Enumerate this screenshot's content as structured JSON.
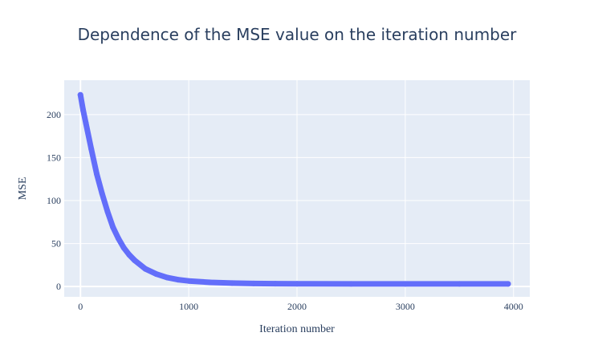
{
  "chart_data": {
    "type": "scatter",
    "title": "Dependence of the MSE value on the iteration number",
    "xlabel": "Iteration number",
    "ylabel": "MSE",
    "xlim": [
      -150,
      4150
    ],
    "ylim": [
      -12,
      240
    ],
    "x_ticks": [
      0,
      1000,
      2000,
      3000,
      4000
    ],
    "x_tick_labels": [
      "0",
      "1000",
      "2000",
      "3000",
      "4000"
    ],
    "y_ticks": [
      0,
      50,
      100,
      150,
      200
    ],
    "y_tick_labels": [
      "0",
      "50",
      "100",
      "150",
      "200"
    ],
    "grid": true,
    "legend": false,
    "colors": {
      "plot_background": "#e5ecf6",
      "grid": "#ffffff",
      "series": "#636efa",
      "text": "#2a3f5f"
    },
    "series": [
      {
        "x": [
          0,
          25,
          50,
          100,
          150,
          200,
          250,
          300,
          350,
          400,
          450,
          500,
          600,
          700,
          800,
          900,
          1000,
          1200,
          1400,
          1600,
          1800,
          2000,
          2500,
          3000,
          3500,
          3950
        ],
        "y": [
          223,
          205,
          190,
          160,
          131,
          108,
          87,
          69,
          56,
          45,
          37,
          30.5,
          20.5,
          14.5,
          10.5,
          8,
          6.5,
          4.8,
          4,
          3.5,
          3.3,
          3.2,
          3,
          3,
          3,
          3
        ]
      }
    ]
  }
}
